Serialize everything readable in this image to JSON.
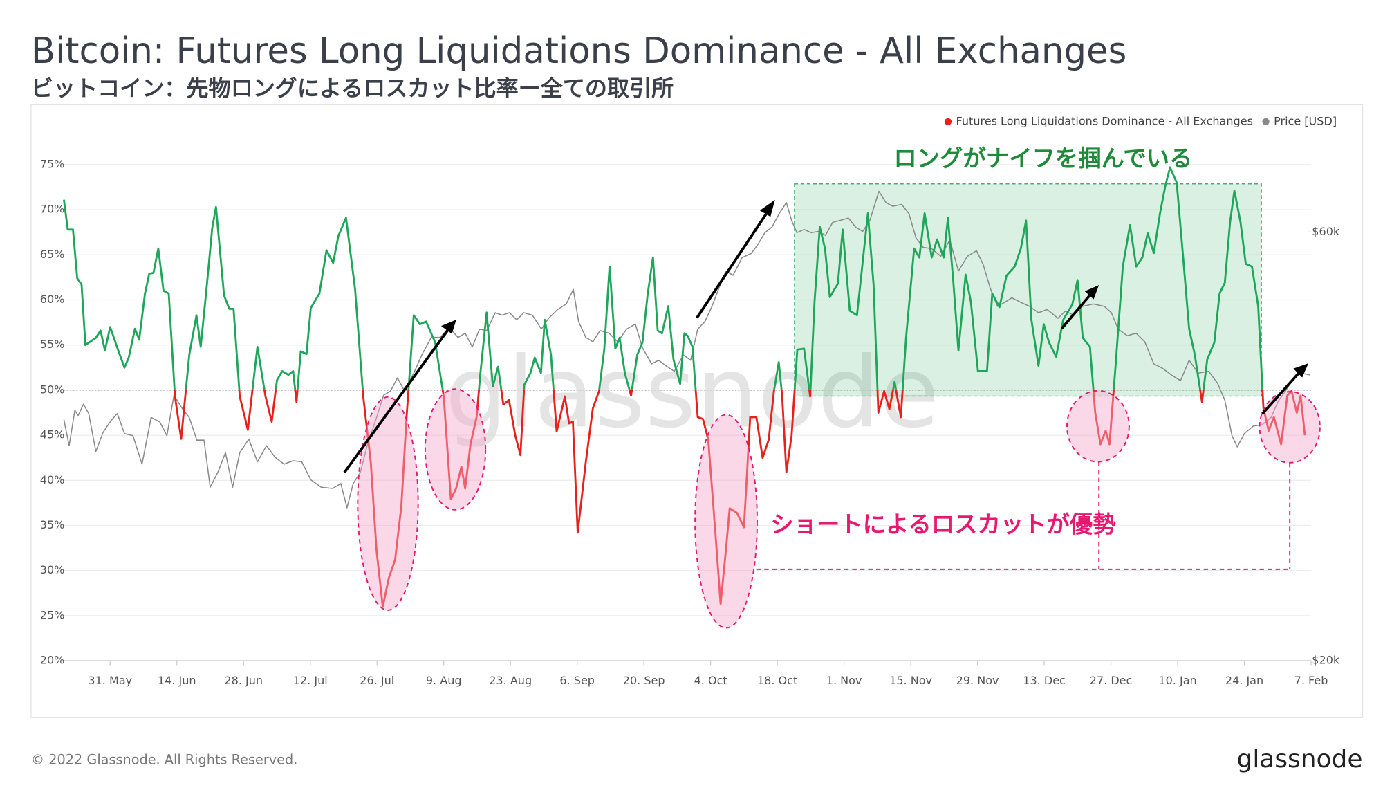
{
  "chart_data": {
    "type": "line",
    "title": "Bitcoin: Futures Long Liquidations Dominance - All Exchanges",
    "subtitle": "ビットコイン：先物ロングによるロスカット比率ー全ての取引所",
    "annotations": [
      "ロングがナイフを掴んでいる",
      "ショートによるロスカットが優勢"
    ],
    "footer": "© 2022 Glassnode. All Rights Reserved.",
    "logo": "glassnode",
    "watermark": "glassnode",
    "xlim": [
      -9.7,
      252
    ],
    "xticks": [
      {
        "value": 0,
        "label": "31. May"
      },
      {
        "value": 14,
        "label": "14. Jun"
      },
      {
        "value": 28,
        "label": "28. Jun"
      },
      {
        "value": 42,
        "label": "12. Jul"
      },
      {
        "value": 56,
        "label": "26. Jul"
      },
      {
        "value": 70,
        "label": "9. Aug"
      },
      {
        "value": 84,
        "label": "23. Aug"
      },
      {
        "value": 98,
        "label": "6. Sep"
      },
      {
        "value": 112,
        "label": "20. Sep"
      },
      {
        "value": 126,
        "label": "4. Oct"
      },
      {
        "value": 140,
        "label": "18. Oct"
      },
      {
        "value": 154,
        "label": "1. Nov"
      },
      {
        "value": 168,
        "label": "15. Nov"
      },
      {
        "value": 182,
        "label": "29. Nov"
      },
      {
        "value": 196,
        "label": "13. Dec"
      },
      {
        "value": 210,
        "label": "27. Dec"
      },
      {
        "value": 224,
        "label": "10. Jan"
      },
      {
        "value": 238,
        "label": "24. Jan"
      },
      {
        "value": 252,
        "label": "7. Feb"
      }
    ],
    "ylim": [
      20,
      77
    ],
    "yticks": [
      {
        "value": 20,
        "label": "20%"
      },
      {
        "value": 25,
        "label": "25%"
      },
      {
        "value": 30,
        "label": "30%"
      },
      {
        "value": 35,
        "label": "35%"
      },
      {
        "value": 40,
        "label": "40%"
      },
      {
        "value": 45,
        "label": "45%"
      },
      {
        "value": 50,
        "label": "50%"
      },
      {
        "value": 55,
        "label": "55%"
      },
      {
        "value": 60,
        "label": "60%"
      },
      {
        "value": 65,
        "label": "65%"
      },
      {
        "value": 70,
        "label": "70%"
      },
      {
        "value": 75,
        "label": "75%"
      }
    ],
    "y2lim": [
      20000,
      74700
    ],
    "y2log": true,
    "y2ticks": [
      {
        "value": 20000,
        "label": "$20k"
      },
      {
        "value": 60000,
        "label": "$60k"
      }
    ],
    "grid": true,
    "reference_line": 50,
    "legend": "top-right",
    "series": [
      {
        "name": "Futures Long Liquidations Dominance - All Exchanges",
        "color": "#e8211c",
        "color_above": "#1ea65a",
        "x": [
          -9.7,
          -8.9,
          -7.8,
          -6.9,
          -6,
          -5.2,
          -3,
          -2,
          -1.1,
          0,
          1.7,
          3,
          3.9,
          5.2,
          6.1,
          7.3,
          8.2,
          9.1,
          10.1,
          11.2,
          12.3,
          13.6,
          14.9,
          16.6,
          18.1,
          19,
          20.3,
          21.4,
          22.2,
          23.9,
          25,
          25.9,
          27.2,
          28.9,
          30.9,
          32.6,
          33.9,
          35,
          36.1,
          37.4,
          38.4,
          39.1,
          40,
          41.2,
          42.1,
          43.9,
          45.4,
          46.8,
          47.9,
          49.5,
          51.4,
          53.1,
          54.7,
          55.9,
          57.2,
          58.5,
          59.8,
          61.1,
          62.2,
          63.7,
          65,
          66.3,
          68.2,
          70,
          71.5,
          72.6,
          73.7,
          74.5,
          75.6,
          76.9,
          77.7,
          79,
          80.3,
          81.4,
          82.5,
          83.7,
          85,
          86.1,
          86.9,
          88.2,
          89.1,
          90.4,
          91.2,
          92.5,
          93.7,
          95.4,
          96.3,
          97.1,
          98.1,
          99.8,
          101.3,
          102.6,
          103.7,
          104.8,
          106,
          106.9,
          108,
          109.3,
          110.6,
          111.7,
          112.8,
          113.9,
          114.9,
          115.8,
          117.1,
          118.2,
          119.6,
          120.5,
          121.2,
          122.2,
          123.3,
          124.4,
          125.5,
          127,
          128.1,
          129.2,
          130,
          131.5,
          133,
          134.3,
          135.6,
          136.9,
          138.2,
          139.3,
          140.3,
          141,
          141.9,
          143,
          144.2,
          145.6,
          146.9,
          147.8,
          148.9,
          150,
          151,
          152.7,
          153.7,
          155.2,
          156.7,
          157.8,
          159,
          160.2,
          161.2,
          162.4,
          163.5,
          164.6,
          165.9,
          167,
          168.7,
          169.8,
          170.9,
          172.4,
          173.5,
          174.9,
          175.8,
          176.9,
          178,
          179.5,
          180.6,
          182.1,
          184,
          185.1,
          186.6,
          188.1,
          189.8,
          191.1,
          192.2,
          193.3,
          194.8,
          195.9,
          197,
          198.5,
          200,
          201.9,
          203,
          204.1,
          205.6,
          206.7,
          207.8,
          208.9,
          209.7,
          211,
          212.5,
          214,
          215.3,
          216.6,
          217.7,
          219,
          220.3,
          221.4,
          222.4,
          223.8,
          225,
          226.4,
          227.6,
          229.1,
          230.2,
          231.7,
          232.8,
          233.9,
          235,
          235.9,
          237.2,
          238.3,
          239.6,
          240.9,
          242,
          243.1,
          244.2,
          245.7,
          247,
          247.9,
          249,
          249.8,
          250.7
        ],
        "values": [
          71.1,
          67.8,
          67.8,
          62.4,
          61.7,
          55.0,
          55.8,
          56.6,
          54.4,
          57.0,
          54.4,
          52.5,
          53.6,
          56.8,
          55.6,
          60.7,
          62.9,
          63.0,
          65.7,
          61.0,
          60.7,
          49.3,
          44.6,
          53.9,
          58.3,
          54.8,
          61.7,
          67.9,
          70.3,
          60.5,
          59.0,
          59.0,
          49.3,
          45.6,
          54.8,
          49.3,
          46.5,
          51.1,
          52.1,
          51.7,
          52.1,
          48.7,
          54.3,
          54.0,
          59.1,
          60.7,
          65.5,
          64.1,
          67.1,
          69.1,
          61.2,
          49.3,
          42.0,
          32.2,
          26.0,
          29.2,
          31.2,
          37.1,
          47.0,
          58.3,
          57.3,
          57.6,
          55.3,
          49.3,
          37.9,
          39.1,
          41.5,
          39.1,
          44.0,
          47.0,
          51.9,
          58.6,
          50.4,
          52.6,
          48.4,
          48.9,
          45.0,
          42.8,
          50.6,
          51.9,
          53.6,
          51.9,
          57.8,
          53.9,
          45.4,
          49.3,
          46.3,
          46.5,
          34.2,
          42.0,
          48.0,
          49.9,
          54.6,
          63.7,
          54.6,
          55.8,
          51.9,
          49.4,
          53.9,
          55.3,
          60.7,
          64.7,
          56.6,
          56.3,
          59.3,
          53.4,
          50.7,
          56.3,
          56.0,
          54.8,
          47.0,
          46.8,
          44.5,
          34.2,
          26.3,
          32.2,
          36.9,
          36.4,
          34.8,
          47.0,
          47.0,
          42.5,
          44.5,
          49.9,
          53.1,
          49.4,
          40.9,
          45.0,
          54.5,
          54.6,
          49.3,
          59.8,
          68.1,
          65.7,
          60.3,
          61.8,
          67.8,
          58.8,
          58.3,
          63.7,
          69.6,
          61.7,
          47.5,
          49.9,
          47.9,
          50.9,
          47.0,
          55.8,
          65.7,
          64.7,
          69.6,
          64.7,
          66.7,
          64.7,
          69.1,
          62.2,
          54.4,
          62.8,
          59.8,
          52.1,
          52.1,
          60.7,
          59.2,
          62.7,
          63.7,
          65.7,
          68.8,
          57.8,
          52.7,
          57.3,
          55.3,
          53.7,
          57.8,
          59.5,
          62.2,
          55.8,
          54.8,
          47.5,
          44.0,
          45.5,
          44.0,
          52.9,
          63.7,
          68.3,
          63.7,
          64.7,
          67.4,
          65.2,
          69.6,
          72.6,
          74.7,
          73.0,
          65.7,
          56.8,
          53.9,
          48.7,
          53.4,
          55.3,
          60.7,
          61.9,
          68.6,
          72.1,
          68.6,
          64.0,
          63.7,
          59.3,
          48.0,
          45.5,
          47.0,
          44.0,
          49.4,
          49.9,
          47.5,
          49.4,
          45.0
        ]
      },
      {
        "name": "Price [USD]",
        "color": "#8a8a8a",
        "axis": "y2",
        "x": [
          -9.7,
          -8.6,
          -7.4,
          -6.7,
          -5.6,
          -4.5,
          -3.0,
          -1.5,
          0,
          1.5,
          3.0,
          4.8,
          6.7,
          8.6,
          10.4,
          11.9,
          13.4,
          15.1,
          16.6,
          18.2,
          19.7,
          21.0,
          22.7,
          24.2,
          25.7,
          27.2,
          29.1,
          30.9,
          32.8,
          34.6,
          36.5,
          38.4,
          40.2,
          42.1,
          44.3,
          46.7,
          48.4,
          49.7,
          51.0,
          52.5,
          54.0,
          55.9,
          57.4,
          58.8,
          60.3,
          61.8,
          63.7,
          65.5,
          67.4,
          69.3,
          71.1,
          73.0,
          74.5,
          76.0,
          77.5,
          79.0,
          80.8,
          82.3,
          83.8,
          85.3,
          86.8,
          88.6,
          90.5,
          92.0,
          93.9,
          95.7,
          97.2,
          98.3,
          99.8,
          101.3,
          102.8,
          104.7,
          106.5,
          108.4,
          110.2,
          111.7,
          113.6,
          115.1,
          116.6,
          118.4,
          120.3,
          121.8,
          123.3,
          124.8,
          126.3,
          127.7,
          129.2,
          130.7,
          132.6,
          134.5,
          135.9,
          137.4,
          138.9,
          140.4,
          141.9,
          143.0,
          144.1,
          145.6,
          147.1,
          148.6,
          150.1,
          151.6,
          153.1,
          154.9,
          156.4,
          157.9,
          159.4,
          161.3,
          162.8,
          164.2,
          166.1,
          167.6,
          169.1,
          170.6,
          172.4,
          174.3,
          176.2,
          178.0,
          179.9,
          181.8,
          183.2,
          184.7,
          186.2,
          187.7,
          189.2,
          191.1,
          192.9,
          194.8,
          196.6,
          198.9,
          200.4,
          202.2,
          204.1,
          206.3,
          208.6,
          210.1,
          211.5,
          213.4,
          215.3,
          217.1,
          219.0,
          220.9,
          222.7,
          224.6,
          226.4,
          228.3,
          230.5,
          232.4,
          233.9,
          235.4,
          236.5,
          238.0,
          239.9,
          241.7,
          243.6,
          245.1,
          246.6,
          248.0,
          249.8,
          251.8
        ],
        "values": [
          37100,
          34700,
          38000,
          37500,
          38600,
          37700,
          34200,
          35900,
          36900,
          37700,
          35800,
          35600,
          33100,
          37300,
          36900,
          35600,
          39500,
          38200,
          37300,
          35200,
          35200,
          31200,
          32500,
          34100,
          31200,
          34100,
          35300,
          33300,
          34700,
          33700,
          33100,
          33400,
          33300,
          31800,
          31200,
          31100,
          31500,
          29600,
          31500,
          32400,
          34800,
          37300,
          39500,
          39900,
          41300,
          39900,
          41800,
          43900,
          45800,
          45800,
          47000,
          45800,
          46300,
          44700,
          46800,
          46600,
          48800,
          48500,
          48800,
          47900,
          48800,
          48500,
          46800,
          48100,
          49200,
          49900,
          51800,
          47700,
          45800,
          45300,
          46600,
          46300,
          45300,
          46800,
          47400,
          44600,
          42800,
          43200,
          42600,
          42000,
          43800,
          43200,
          46800,
          47700,
          49600,
          51900,
          54300,
          53700,
          56200,
          56800,
          58100,
          59900,
          60800,
          62900,
          64700,
          61800,
          59900,
          60400,
          59900,
          60100,
          59500,
          61500,
          61800,
          62200,
          60800,
          60100,
          61800,
          66600,
          64700,
          64100,
          64400,
          62900,
          59100,
          57700,
          57500,
          56400,
          58800,
          54300,
          56400,
          57200,
          55200,
          51900,
          49600,
          50100,
          50700,
          50100,
          49600,
          48800,
          49200,
          48100,
          49000,
          48500,
          49600,
          49900,
          49600,
          48800,
          46800,
          46000,
          46300,
          45300,
          42800,
          42300,
          41600,
          41000,
          43200,
          41800,
          42000,
          40700,
          39000,
          35600,
          34600,
          35800,
          36500,
          36600,
          37300,
          38900,
          39900,
          41000,
          41800,
          41600
        ]
      }
    ]
  }
}
